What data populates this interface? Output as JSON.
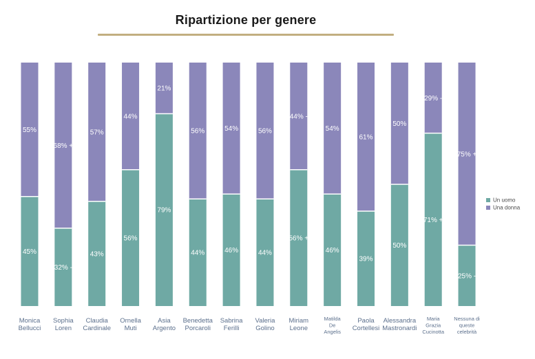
{
  "colors": {
    "title_rule": "#c2ae80",
    "man": "#6fa9a4",
    "woman": "#8b87ba",
    "background": "#ffffff"
  },
  "chart_data": {
    "type": "bar",
    "stacked": true,
    "percent_stacked": true,
    "title": "Ripartizione per genere",
    "categories": [
      "Monica Bellucci",
      "Sophia Loren",
      "Claudia Cardinale",
      "Ornella Muti",
      "Asia Argento",
      "Benedetta Porcaroli",
      "Sabrina Ferilli",
      "Valeria Golino",
      "Miriam Leone",
      "Matilda De Angelis",
      "Paola Cortellesi",
      "Alessandra Mastronardi",
      "Maria Grazia Cucinotta",
      "Nessuna di queste celebrità"
    ],
    "category_lines": [
      [
        "Monica",
        "Bellucci"
      ],
      [
        "Sophia",
        "Loren"
      ],
      [
        "Claudia",
        "Cardinale"
      ],
      [
        "Ornella",
        "Muti"
      ],
      [
        "Asia",
        "Argento"
      ],
      [
        "Benedetta",
        "Porcaroli"
      ],
      [
        "Sabrina",
        "Ferilli"
      ],
      [
        "Valeria",
        "Golino"
      ],
      [
        "Miriam",
        "Leone"
      ],
      [
        "Matilda",
        "De",
        "Angelis"
      ],
      [
        "Paola",
        "Cortellesi"
      ],
      [
        "Alessandra",
        "Mastronardi"
      ],
      [
        "Maria",
        "Grazia",
        "Cucinotta"
      ],
      [
        "Nessuna di",
        "queste",
        "celebrità"
      ]
    ],
    "series": [
      {
        "name": "Un uomo",
        "color": "#6fa9a4",
        "values": [
          45,
          32,
          43,
          56,
          79,
          44,
          46,
          44,
          56,
          46,
          39,
          50,
          71,
          25
        ],
        "labels": [
          "45%",
          "32% -",
          "43%",
          "56%",
          "79%",
          "44%",
          "46%",
          "44%",
          "56% +",
          "46%",
          "39%",
          "50%",
          "71% +",
          "25% -"
        ]
      },
      {
        "name": "Una donna",
        "color": "#8b87ba",
        "values": [
          55,
          68,
          57,
          44,
          21,
          56,
          54,
          56,
          44,
          54,
          61,
          50,
          29,
          75
        ],
        "labels": [
          "55%",
          "68% +",
          "57%",
          "44%",
          "21%",
          "56%",
          "54%",
          "56%",
          "44% -",
          "54%",
          "61%",
          "50%",
          "29% -",
          "75% +"
        ]
      }
    ],
    "ylim": [
      0,
      100
    ],
    "grid": false,
    "legend_position": "right"
  }
}
